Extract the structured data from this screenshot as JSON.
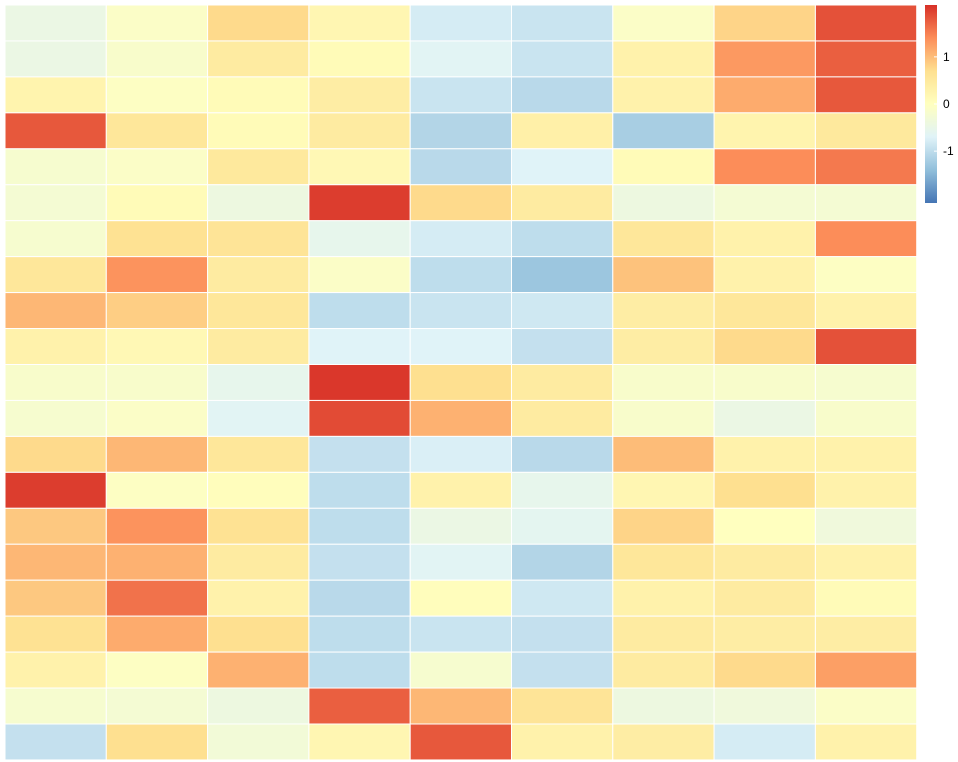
{
  "chart_data": {
    "type": "heatmap",
    "rows": 21,
    "cols": 9,
    "values": [
      [
        -0.45,
        -0.1,
        0.75,
        0.2,
        -0.8,
        -0.9,
        -0.1,
        0.8,
        1.85
      ],
      [
        -0.45,
        -0.15,
        0.45,
        0.1,
        -0.65,
        -0.9,
        0.3,
        1.3,
        1.75
      ],
      [
        0.25,
        -0.05,
        0.1,
        0.4,
        -0.9,
        -1.05,
        0.3,
        1.15,
        1.8
      ],
      [
        1.8,
        0.55,
        0.1,
        0.45,
        -1.1,
        0.35,
        -1.2,
        0.25,
        0.5
      ],
      [
        -0.2,
        -0.1,
        0.5,
        0.15,
        -1.05,
        -0.7,
        0.1,
        1.4,
        1.55
      ],
      [
        -0.25,
        0.1,
        -0.4,
        2.0,
        0.75,
        0.45,
        -0.4,
        -0.25,
        -0.25
      ],
      [
        -0.2,
        0.65,
        0.6,
        -0.55,
        -0.8,
        -1.0,
        0.55,
        0.3,
        1.4
      ],
      [
        0.55,
        1.35,
        0.45,
        -0.1,
        -1.0,
        -1.3,
        0.95,
        0.3,
        -0.05
      ],
      [
        1.05,
        0.85,
        0.55,
        -1.0,
        -0.9,
        -0.85,
        0.4,
        0.55,
        0.3
      ],
      [
        0.3,
        0.15,
        0.45,
        -0.7,
        -0.7,
        -0.95,
        0.4,
        0.75,
        1.85
      ],
      [
        -0.15,
        -0.15,
        -0.55,
        2.05,
        0.7,
        0.45,
        -0.15,
        -0.15,
        -0.2
      ],
      [
        -0.2,
        -0.1,
        -0.65,
        1.9,
        1.1,
        0.45,
        -0.15,
        -0.45,
        -0.15
      ],
      [
        0.75,
        1.05,
        0.55,
        -0.95,
        -0.75,
        -1.05,
        1.0,
        0.3,
        0.3
      ],
      [
        2.0,
        -0.05,
        0.05,
        -1.0,
        0.3,
        -0.55,
        0.2,
        0.7,
        0.3
      ],
      [
        0.9,
        1.35,
        0.65,
        -1.0,
        -0.45,
        -0.6,
        0.8,
        0.0,
        -0.35
      ],
      [
        1.05,
        1.1,
        0.45,
        -0.95,
        -0.65,
        -1.1,
        0.55,
        0.45,
        0.3
      ],
      [
        0.9,
        1.6,
        0.3,
        -1.05,
        0.05,
        -0.85,
        0.3,
        0.45,
        0.1
      ],
      [
        0.65,
        1.15,
        0.7,
        -1.0,
        -0.9,
        -0.95,
        0.45,
        0.4,
        0.4
      ],
      [
        0.3,
        -0.05,
        1.1,
        -1.0,
        -0.2,
        -0.95,
        0.45,
        0.75,
        1.25
      ],
      [
        -0.2,
        -0.25,
        -0.4,
        1.75,
        1.05,
        0.6,
        -0.4,
        -0.35,
        -0.1
      ],
      [
        -0.95,
        0.7,
        -0.3,
        0.2,
        1.8,
        0.3,
        0.4,
        -0.8,
        0.3
      ]
    ],
    "colorbar": {
      "ticks": [
        1,
        0,
        -1
      ],
      "tick_labels": [
        "1",
        "0",
        "-1"
      ],
      "min": -2.1,
      "max": 2.1,
      "colors": [
        "#4575b4",
        "#91bfdb",
        "#e0f3f8",
        "#ffffbf",
        "#fee090",
        "#fc8d59",
        "#d73027"
      ]
    },
    "title": "",
    "xlabel": "",
    "ylabel": "",
    "grid": false,
    "legend_placement": "top-right"
  }
}
